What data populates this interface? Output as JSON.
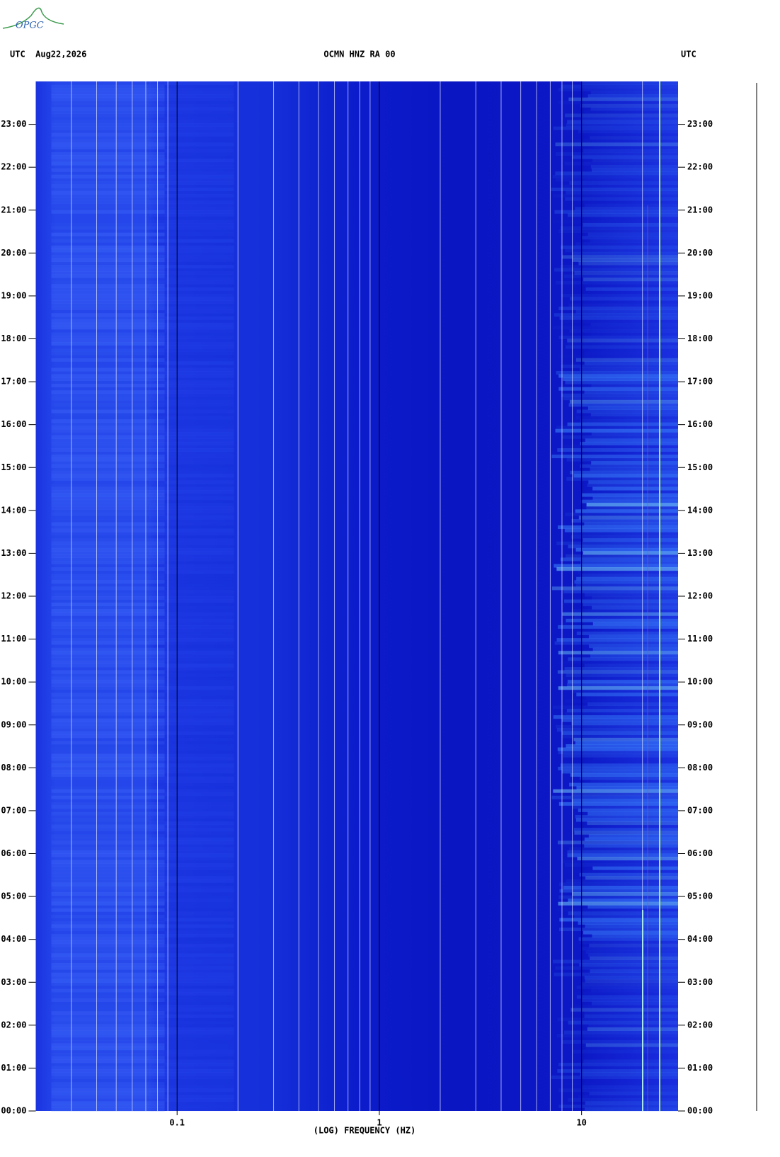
{
  "logo": "OPGC",
  "chart_data": {
    "type": "spectrogram",
    "title": "OCMN HNZ RA 00",
    "left_header": "UTC  Aug22,2026",
    "right_header": "UTC",
    "x_label": "(LOG) FREQUENCY (HZ)",
    "x_log": true,
    "xlim": [
      0.02,
      30
    ],
    "xticks": [
      0.1,
      1,
      10
    ],
    "minor_xticks": [
      0.03,
      0.04,
      0.05,
      0.06,
      0.07,
      0.08,
      0.09,
      0.2,
      0.3,
      0.4,
      0.5,
      0.6,
      0.7,
      0.8,
      0.9,
      2,
      3,
      4,
      5,
      6,
      7,
      8,
      9,
      20
    ],
    "ylim": [
      0,
      24
    ],
    "yticks": [
      {
        "value": 0,
        "label": "00:00"
      },
      {
        "value": 1,
        "label": "01:00"
      },
      {
        "value": 2,
        "label": "02:00"
      },
      {
        "value": 3,
        "label": "03:00"
      },
      {
        "value": 4,
        "label": "04:00"
      },
      {
        "value": 5,
        "label": "05:00"
      },
      {
        "value": 6,
        "label": "06:00"
      },
      {
        "value": 7,
        "label": "07:00"
      },
      {
        "value": 8,
        "label": "08:00"
      },
      {
        "value": 9,
        "label": "09:00"
      },
      {
        "value": 10,
        "label": "10:00"
      },
      {
        "value": 11,
        "label": "11:00"
      },
      {
        "value": 12,
        "label": "12:00"
      },
      {
        "value": 13,
        "label": "13:00"
      },
      {
        "value": 14,
        "label": "14:00"
      },
      {
        "value": 15,
        "label": "15:00"
      },
      {
        "value": 16,
        "label": "16:00"
      },
      {
        "value": 17,
        "label": "17:00"
      },
      {
        "value": 18,
        "label": "18:00"
      },
      {
        "value": 19,
        "label": "19:00"
      },
      {
        "value": 20,
        "label": "20:00"
      },
      {
        "value": 21,
        "label": "21:00"
      },
      {
        "value": 22,
        "label": "22:00"
      },
      {
        "value": 23,
        "label": "23:00"
      }
    ]
  }
}
